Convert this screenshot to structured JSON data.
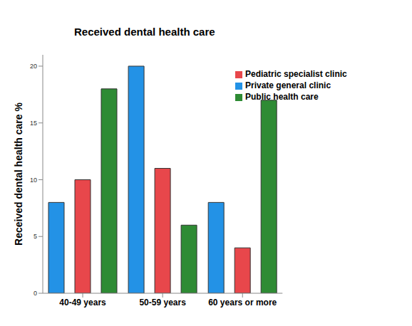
{
  "chart_data": {
    "type": "bar",
    "title": "Received dental health care",
    "y_label": "Received dental health care %",
    "categories": [
      "40-49 years",
      "50-59 years",
      "60 years or more"
    ],
    "series": [
      {
        "name": "Private general clinic",
        "color": "#2392e6",
        "values": [
          8,
          20,
          8
        ]
      },
      {
        "name": "Pediatric specialist clinic",
        "color": "#e8474b",
        "values": [
          10,
          11,
          4
        ]
      },
      {
        "name": "Public health care",
        "color": "#2e8b34",
        "values": [
          18,
          6,
          17
        ]
      }
    ],
    "ylim": [
      0,
      21
    ],
    "yticks": [
      0,
      5,
      10,
      15,
      20
    ],
    "grid": false,
    "legend": "upper right"
  }
}
